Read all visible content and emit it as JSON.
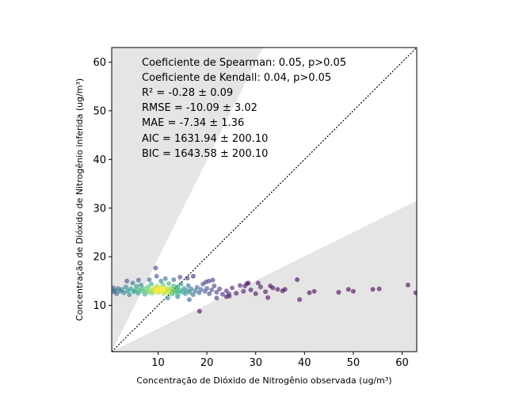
{
  "chart_data": {
    "type": "scatter",
    "xlabel": "Concentração de Dióxido de Nitrogênio observada (ug/m³)",
    "ylabel": "Concentração de Dióxido de Nitrogênio inferida (ug/m³)",
    "xlim": [
      0.5,
      63
    ],
    "ylim": [
      0.5,
      63
    ],
    "xticks": [
      10,
      20,
      30,
      40,
      50,
      60
    ],
    "yticks": [
      10,
      20,
      30,
      40,
      50,
      60
    ],
    "grid": false,
    "reference_line": "y = x (dotted)",
    "shaded_regions": "outside factor-of-2 band (y > 2x and y < x/2)",
    "color_encoding": "point density (viridis)",
    "annotations": [
      "Coeficiente de Spearman: 0.05, p>0.05",
      "Coeficiente de Kendall: 0.04, p>0.05",
      "R² = -0.28 ± 0.09",
      "RMSE = -10.09 ± 3.02",
      "MAE = -7.34 ± 1.36",
      "AIC = 1631.94 ± 200.10",
      "BIC = 1643.58 ± 200.10"
    ],
    "points": [
      [
        0.8,
        13.6,
        0.25
      ],
      [
        0.9,
        12.8,
        0.3
      ],
      [
        1.2,
        13.1,
        0.35
      ],
      [
        1.5,
        12.4,
        0.3
      ],
      [
        1.8,
        13.5,
        0.35
      ],
      [
        2.2,
        12.9,
        0.4
      ],
      [
        2.6,
        13.3,
        0.45
      ],
      [
        3.0,
        12.6,
        0.4
      ],
      [
        3.4,
        13.8,
        0.45
      ],
      [
        3.8,
        13.0,
        0.5
      ],
      [
        4.1,
        12.2,
        0.45
      ],
      [
        4.4,
        13.4,
        0.55
      ],
      [
        4.8,
        14.6,
        0.4
      ],
      [
        5.0,
        12.8,
        0.55
      ],
      [
        5.3,
        13.1,
        0.6
      ],
      [
        5.6,
        13.9,
        0.55
      ],
      [
        5.9,
        12.5,
        0.55
      ],
      [
        6.2,
        13.2,
        0.65
      ],
      [
        6.5,
        14.2,
        0.5
      ],
      [
        6.8,
        12.9,
        0.7
      ],
      [
        7.0,
        13.5,
        0.7
      ],
      [
        7.3,
        12.3,
        0.6
      ],
      [
        7.6,
        13.0,
        0.75
      ],
      [
        7.9,
        13.8,
        0.7
      ],
      [
        8.1,
        12.7,
        0.8
      ],
      [
        8.4,
        13.3,
        0.85
      ],
      [
        8.6,
        14.4,
        0.6
      ],
      [
        8.8,
        12.5,
        0.8
      ],
      [
        9.0,
        13.1,
        0.9
      ],
      [
        9.2,
        13.6,
        0.9
      ],
      [
        9.4,
        12.9,
        0.95
      ],
      [
        9.6,
        13.3,
        1.0
      ],
      [
        9.8,
        14.0,
        0.85
      ],
      [
        10.0,
        12.6,
        0.9
      ],
      [
        10.2,
        13.2,
        1.0
      ],
      [
        10.4,
        13.7,
        0.95
      ],
      [
        10.6,
        12.8,
        0.95
      ],
      [
        10.8,
        13.4,
        1.0
      ],
      [
        11.0,
        14.3,
        0.75
      ],
      [
        11.2,
        12.4,
        0.85
      ],
      [
        11.4,
        13.0,
        0.95
      ],
      [
        11.6,
        13.6,
        0.9
      ],
      [
        11.8,
        12.7,
        0.9
      ],
      [
        12.0,
        13.3,
        0.9
      ],
      [
        12.2,
        14.5,
        0.6
      ],
      [
        12.4,
        12.9,
        0.85
      ],
      [
        12.6,
        13.5,
        0.8
      ],
      [
        12.8,
        12.3,
        0.7
      ],
      [
        13.0,
        13.1,
        0.8
      ],
      [
        13.2,
        14.0,
        0.65
      ],
      [
        13.4,
        12.6,
        0.7
      ],
      [
        13.6,
        13.4,
        0.7
      ],
      [
        13.8,
        12.9,
        0.65
      ],
      [
        14.0,
        13.8,
        0.6
      ],
      [
        14.2,
        12.5,
        0.6
      ],
      [
        14.4,
        13.2,
        0.6
      ],
      [
        14.7,
        14.4,
        0.45
      ],
      [
        15.0,
        12.8,
        0.5
      ],
      [
        15.3,
        13.5,
        0.5
      ],
      [
        15.6,
        12.4,
        0.45
      ],
      [
        15.9,
        13.1,
        0.45
      ],
      [
        16.2,
        14.1,
        0.35
      ],
      [
        16.5,
        12.7,
        0.4
      ],
      [
        16.8,
        13.4,
        0.4
      ],
      [
        17.2,
        12.2,
        0.35
      ],
      [
        17.6,
        13.0,
        0.35
      ],
      [
        18.0,
        13.7,
        0.3
      ],
      [
        18.4,
        12.6,
        0.3
      ],
      [
        18.8,
        13.3,
        0.3
      ],
      [
        19.2,
        14.4,
        0.2
      ],
      [
        19.6,
        12.9,
        0.25
      ],
      [
        20.0,
        13.5,
        0.25
      ],
      [
        20.5,
        12.4,
        0.2
      ],
      [
        21.0,
        13.2,
        0.2
      ],
      [
        21.5,
        14.0,
        0.15
      ],
      [
        22.0,
        12.7,
        0.15
      ],
      [
        22.6,
        13.4,
        0.15
      ],
      [
        23.2,
        12.3,
        0.1
      ],
      [
        24.0,
        13.0,
        0.1
      ],
      [
        24.6,
        11.9,
        0.08
      ],
      [
        25.2,
        13.6,
        0.08
      ],
      [
        26.0,
        12.5,
        0.06
      ],
      [
        26.8,
        14.1,
        0.06
      ],
      [
        27.5,
        12.9,
        0.05
      ],
      [
        28.2,
        14.5,
        0.04
      ],
      [
        29.0,
        13.2,
        0.04
      ],
      [
        30.0,
        12.4,
        0.03
      ],
      [
        31.0,
        13.8,
        0.03
      ],
      [
        32.0,
        12.8,
        0.02
      ],
      [
        33.0,
        14.0,
        0.02
      ],
      [
        34.5,
        13.3,
        0.01
      ],
      [
        36.0,
        13.3,
        0.01
      ],
      [
        38.5,
        15.3,
        0.0
      ],
      [
        39.0,
        11.2,
        0.0
      ],
      [
        41.0,
        12.6,
        0.0
      ],
      [
        42.0,
        12.9,
        0.0
      ],
      [
        47.0,
        12.7,
        0.0
      ],
      [
        49.0,
        13.3,
        0.0
      ],
      [
        50.0,
        12.9,
        0.0
      ],
      [
        54.0,
        13.3,
        0.0
      ],
      [
        55.3,
        13.4,
        0.0
      ],
      [
        61.2,
        14.2,
        0.0
      ],
      [
        62.8,
        12.6,
        0.0
      ],
      [
        9.5,
        17.7,
        0.15
      ],
      [
        9.7,
        16.0,
        0.25
      ],
      [
        11.5,
        15.5,
        0.35
      ],
      [
        13.2,
        15.3,
        0.3
      ],
      [
        14.5,
        15.8,
        0.2
      ],
      [
        16.0,
        15.6,
        0.15
      ],
      [
        17.2,
        16.0,
        0.1
      ],
      [
        8.2,
        15.3,
        0.3
      ],
      [
        10.6,
        15.0,
        0.4
      ],
      [
        12.0,
        11.5,
        0.45
      ],
      [
        14.0,
        11.8,
        0.4
      ],
      [
        16.4,
        11.2,
        0.25
      ],
      [
        18.5,
        8.8,
        0.0
      ],
      [
        6.0,
        15.2,
        0.25
      ],
      [
        3.6,
        15.0,
        0.2
      ],
      [
        19.8,
        14.8,
        0.2
      ],
      [
        20.4,
        15.0,
        0.15
      ],
      [
        21.2,
        15.2,
        0.15
      ],
      [
        22.0,
        11.5,
        0.1
      ],
      [
        24.0,
        11.8,
        0.05
      ],
      [
        24.5,
        12.4,
        0.1
      ],
      [
        27.8,
        14.0,
        0.05
      ],
      [
        28.5,
        14.6,
        0.04
      ],
      [
        30.5,
        14.6,
        0.02
      ],
      [
        32.5,
        11.6,
        0.01
      ],
      [
        33.5,
        13.6,
        0.02
      ],
      [
        35.5,
        13.0,
        0.01
      ]
    ]
  }
}
